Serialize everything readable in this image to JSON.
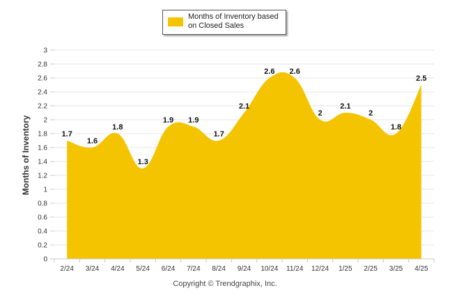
{
  "chart_data": {
    "type": "area",
    "categories": [
      "2/24",
      "3/24",
      "4/24",
      "5/24",
      "6/24",
      "7/24",
      "8/24",
      "9/24",
      "10/24",
      "11/24",
      "12/24",
      "1/25",
      "2/25",
      "3/25",
      "4/25"
    ],
    "series": [
      {
        "name": "Months of Inventory based on Closed Sales",
        "values": [
          1.7,
          1.6,
          1.8,
          1.3,
          1.9,
          1.9,
          1.7,
          2.1,
          2.6,
          2.6,
          2,
          2.1,
          2,
          1.8,
          2.5
        ]
      }
    ],
    "ylabel": "Months of Inventory",
    "ylim": [
      0,
      3
    ],
    "yticks": [
      "0",
      "0.2",
      "0.4",
      "0.6",
      "0.8",
      "1",
      "1.2",
      "1.4",
      "1.6",
      "1.8",
      "2",
      "2.2",
      "2.4",
      "2.6",
      "2.8",
      "3"
    ],
    "grid": true,
    "legend_position": "top-center",
    "color": "#f5c400"
  },
  "copyright": "Copyright © Trendgraphix, Inc."
}
